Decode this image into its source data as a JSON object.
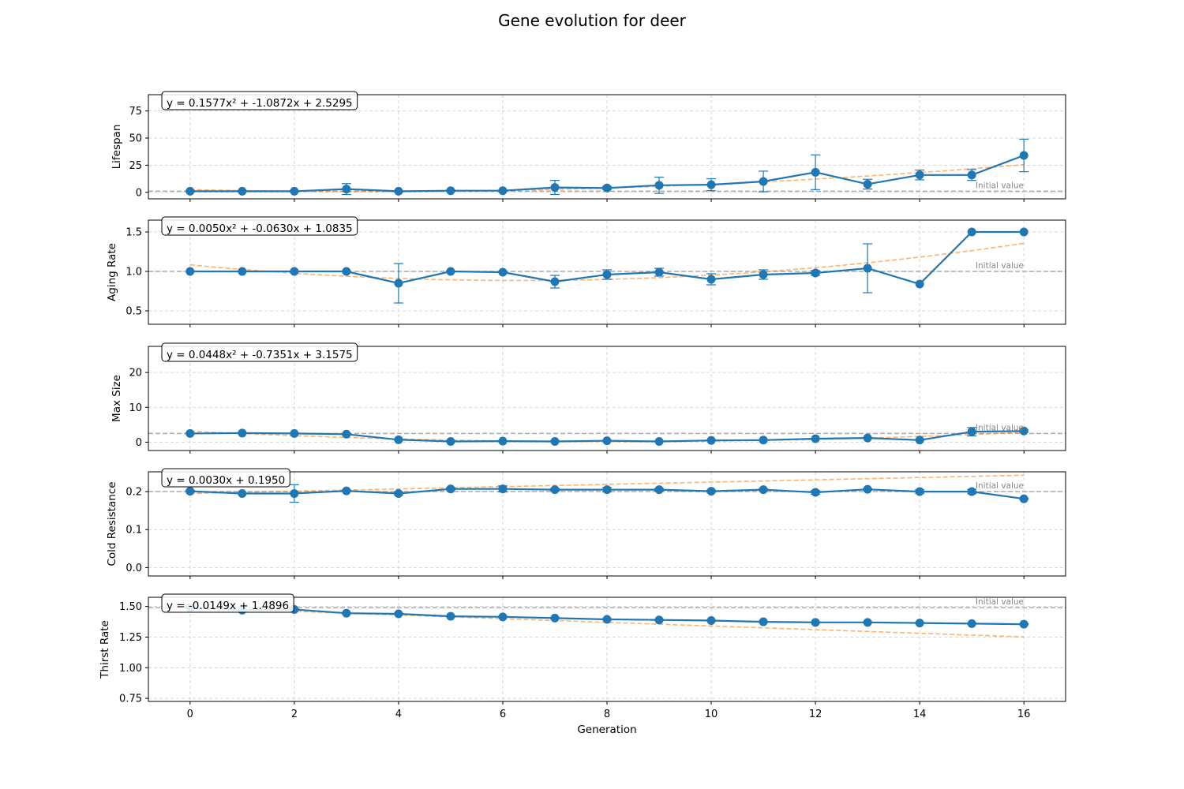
{
  "figure": {
    "title": "Gene evolution for deer"
  },
  "chart_data": [
    {
      "type": "line",
      "ylabel": "Lifespan",
      "xlabel": "",
      "ylim": [
        -6,
        90
      ],
      "yticks": [
        0,
        25,
        50,
        75
      ],
      "ytick_labels": [
        "0",
        "25",
        "50",
        "75"
      ],
      "x": [
        0,
        1,
        2,
        3,
        4,
        5,
        6,
        7,
        8,
        9,
        10,
        11,
        12,
        13,
        14,
        15,
        16
      ],
      "series": [
        {
          "role": "observed",
          "color": "#1f77b4",
          "values": [
            1,
            1,
            1,
            3,
            1,
            1.5,
            1.5,
            4.5,
            4,
            6.5,
            7,
            10,
            18.5,
            7.5,
            16,
            16,
            34
          ],
          "error": [
            0.5,
            0.5,
            0.5,
            5,
            0.5,
            0.5,
            0.5,
            6.5,
            1.5,
            7.5,
            5.5,
            9.5,
            16,
            4.5,
            4.5,
            5,
            15
          ]
        },
        {
          "role": "fit",
          "color": "#ff7f0e",
          "coeffs": [
            0.1577,
            -1.0872,
            2.5295
          ]
        }
      ],
      "reference": {
        "value": 1,
        "label": "Initial value",
        "color": "#aaaaaa"
      },
      "equation": "y = 0.1577x² + -1.0872x + 2.5295",
      "grid": true
    },
    {
      "type": "line",
      "ylabel": "Aging Rate",
      "xlabel": "",
      "ylim": [
        0.33,
        1.65
      ],
      "yticks": [
        0.5,
        1.0,
        1.5
      ],
      "ytick_labels": [
        "0.5",
        "1.0",
        "1.5"
      ],
      "x": [
        0,
        1,
        2,
        3,
        4,
        5,
        6,
        7,
        8,
        9,
        10,
        11,
        12,
        13,
        14,
        15,
        16
      ],
      "series": [
        {
          "role": "observed",
          "color": "#1f77b4",
          "values": [
            1.0,
            1.0,
            1.0,
            1.0,
            0.85,
            1.0,
            0.99,
            0.87,
            0.96,
            0.99,
            0.9,
            0.96,
            0.98,
            1.04,
            0.84,
            1.5,
            1.5
          ],
          "error": [
            0,
            0.005,
            0,
            0,
            0.25,
            0.005,
            0.005,
            0.08,
            0.06,
            0.05,
            0.07,
            0.06,
            0.03,
            0.31,
            0,
            0,
            0
          ]
        },
        {
          "role": "fit",
          "color": "#ff7f0e",
          "coeffs": [
            0.005,
            -0.063,
            1.0835
          ]
        }
      ],
      "reference": {
        "value": 1.0,
        "label": "Initial value",
        "color": "#aaaaaa"
      },
      "equation": "y = 0.0050x² + -0.0630x + 1.0835",
      "grid": true
    },
    {
      "type": "line",
      "ylabel": "Max Size",
      "xlabel": "",
      "ylim": [
        -2.4,
        27.5
      ],
      "yticks": [
        0,
        10,
        20
      ],
      "ytick_labels": [
        "0",
        "10",
        "20"
      ],
      "x": [
        0,
        1,
        2,
        3,
        4,
        5,
        6,
        7,
        8,
        9,
        10,
        11,
        12,
        13,
        14,
        15,
        16
      ],
      "series": [
        {
          "role": "observed",
          "color": "#1f77b4",
          "values": [
            2.5,
            2.6,
            2.5,
            2.3,
            0.7,
            0.2,
            0.3,
            0.2,
            0.4,
            0.2,
            0.5,
            0.6,
            1.0,
            1.2,
            0.6,
            3.0,
            3.2
          ],
          "error": [
            0.1,
            0.1,
            0.1,
            0.2,
            0.1,
            0.05,
            0.05,
            0.05,
            0.05,
            0.05,
            0.05,
            0.05,
            0.1,
            0.1,
            0.05,
            1.2,
            0.3
          ]
        },
        {
          "role": "fit",
          "color": "#ff7f0e",
          "coeffs": [
            0.0448,
            -0.7351,
            3.1575
          ]
        }
      ],
      "reference": {
        "value": 2.5,
        "label": "Initial value",
        "color": "#aaaaaa"
      },
      "equation": "y = 0.0448x² + -0.7351x + 3.1575",
      "grid": true
    },
    {
      "type": "line",
      "ylabel": "Cold Resistance",
      "xlabel": "",
      "ylim": [
        -0.022,
        0.252
      ],
      "yticks": [
        0.0,
        0.1,
        0.2
      ],
      "ytick_labels": [
        "0.0",
        "0.1",
        "0.2"
      ],
      "x": [
        0,
        1,
        2,
        3,
        4,
        5,
        6,
        7,
        8,
        9,
        10,
        11,
        12,
        13,
        14,
        15,
        16
      ],
      "series": [
        {
          "role": "observed",
          "color": "#1f77b4",
          "values": [
            0.201,
            0.195,
            0.195,
            0.202,
            0.195,
            0.207,
            0.207,
            0.205,
            0.205,
            0.205,
            0.201,
            0.205,
            0.198,
            0.206,
            0.2,
            0.2,
            0.181
          ],
          "error": [
            0.002,
            0.001,
            0.023,
            0.002,
            0.004,
            0.003,
            0.008,
            0.003,
            0.006,
            0.003,
            0.003,
            0.002,
            0.005,
            0.002,
            0.005,
            0.006,
            0.001
          ]
        },
        {
          "role": "fit",
          "color": "#ff7f0e",
          "coeffs": [
            0,
            0.003,
            0.195
          ]
        }
      ],
      "reference": {
        "value": 0.2,
        "label": "Initial value",
        "color": "#aaaaaa"
      },
      "equation": "y = 0.0030x + 0.1950",
      "grid": true
    },
    {
      "type": "line",
      "ylabel": "Thirst Rate",
      "xlabel": "Generation",
      "ylim": [
        0.725,
        1.575
      ],
      "yticks": [
        0.75,
        1.0,
        1.25,
        1.5
      ],
      "ytick_labels": [
        "0.75",
        "1.00",
        "1.25",
        "1.50"
      ],
      "x": [
        0,
        1,
        2,
        3,
        4,
        5,
        6,
        7,
        8,
        9,
        10,
        11,
        12,
        13,
        14,
        15,
        16
      ],
      "series": [
        {
          "role": "observed",
          "color": "#1f77b4",
          "values": [
            1.49,
            1.47,
            1.475,
            1.445,
            1.44,
            1.42,
            1.415,
            1.405,
            1.395,
            1.39,
            1.385,
            1.375,
            1.37,
            1.37,
            1.365,
            1.36,
            1.355
          ],
          "error": [
            0.004,
            0.004,
            0.004,
            0.004,
            0.004,
            0.004,
            0.004,
            0.004,
            0.004,
            0.004,
            0.004,
            0.004,
            0.004,
            0.004,
            0.004,
            0.004,
            0.004
          ]
        },
        {
          "role": "fit",
          "color": "#ff7f0e",
          "coeffs": [
            0,
            -0.0149,
            1.4896
          ]
        }
      ],
      "reference": {
        "value": 1.49,
        "label": "Initial value",
        "color": "#aaaaaa"
      },
      "equation": "y = -0.0149x + 1.4896",
      "grid": true
    }
  ],
  "xaxis": {
    "xlim": [
      -0.8,
      16.8
    ],
    "ticks": [
      0,
      2,
      4,
      6,
      8,
      10,
      12,
      14,
      16
    ],
    "tick_labels": [
      "0",
      "2",
      "4",
      "6",
      "8",
      "10",
      "12",
      "14",
      "16"
    ],
    "label": "Generation"
  }
}
